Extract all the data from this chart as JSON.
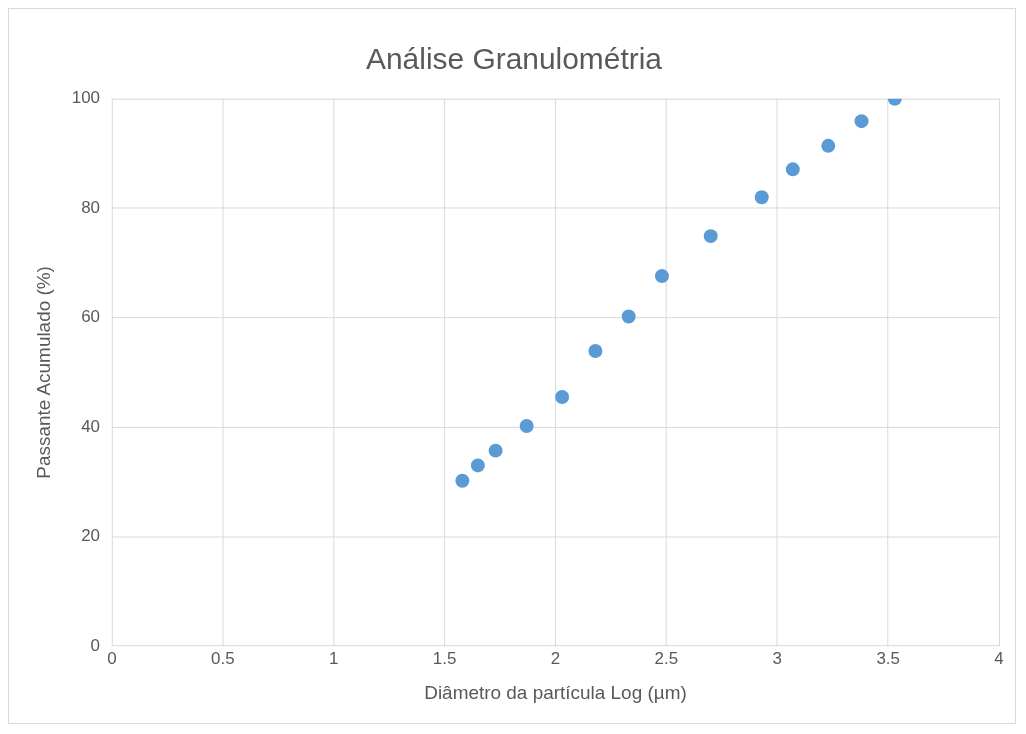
{
  "chart_data": {
    "type": "scatter",
    "title": "Análise Granulométria",
    "xlabel": "Diâmetro da partícula Log (µm)",
    "ylabel": "Passante Acumulado (%)",
    "x": [
      1.58,
      1.65,
      1.73,
      1.87,
      2.03,
      2.18,
      2.33,
      2.48,
      2.7,
      2.93,
      3.07,
      3.23,
      3.38,
      3.53
    ],
    "series": [
      {
        "color": "#5b9bd5",
        "values": [
          30.2,
          33,
          35.7,
          40.2,
          45.5,
          53.9,
          60.2,
          67.6,
          74.9,
          82,
          87.1,
          91.4,
          95.9,
          100
        ]
      }
    ],
    "xlim": [
      0,
      4
    ],
    "xticks": [
      0,
      0.5,
      1,
      1.5,
      2,
      2.5,
      3,
      3.5,
      4
    ],
    "ylim": [
      0,
      100
    ],
    "yticks": [
      0,
      20,
      40,
      60,
      80,
      100
    ],
    "grid": true,
    "legend": false,
    "marker": "circle"
  }
}
